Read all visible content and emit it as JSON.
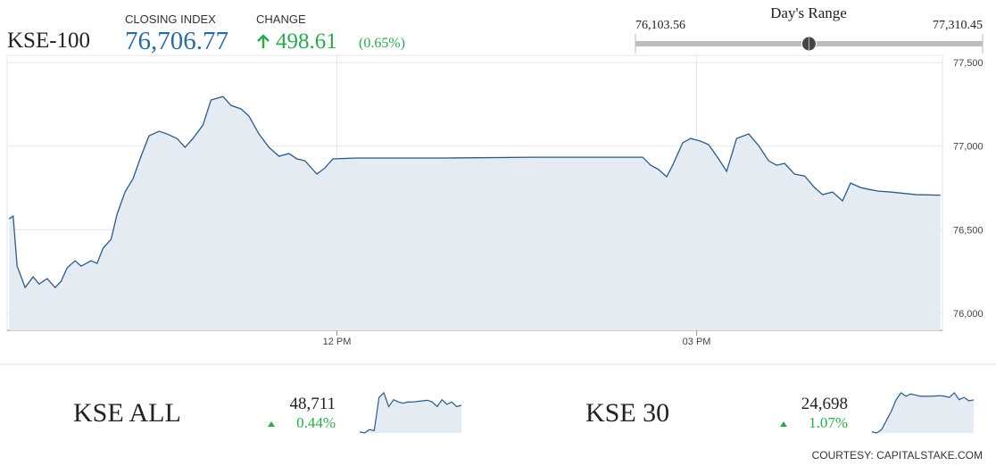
{
  "header": {
    "symbol": "KSE-100",
    "closing_label": "CLOSING INDEX",
    "closing_index": {
      "value": 76706.77,
      "label": "76,706.77"
    },
    "change_label": "CHANGE",
    "change": 498.61,
    "change_pct": {
      "value": 0.65,
      "label": "(0.65%)"
    },
    "range_title": "Day's Range",
    "range_low": {
      "value": 76103.56,
      "label": "76,103.56"
    },
    "range_high": {
      "value": 77310.45,
      "label": "77,310.45"
    }
  },
  "chart_data": [
    {
      "type": "area",
      "color": "#2b5a86",
      "fill": "#e4ebf2",
      "x": [
        556,
        558,
        560,
        564,
        568,
        571,
        575,
        579,
        582,
        585,
        589,
        592,
        597,
        600,
        603,
        607,
        610,
        614,
        618,
        622,
        626,
        631,
        635,
        640,
        644,
        648,
        653,
        657,
        663,
        667,
        672,
        676,
        681,
        686,
        691,
        696,
        700,
        704,
        710,
        714,
        718,
        730,
        775,
        819,
        873,
        877,
        881,
        885,
        888,
        893,
        897,
        902,
        906,
        911,
        915,
        920,
        926,
        931,
        936,
        940,
        944,
        949,
        954,
        959,
        963,
        968,
        973,
        977,
        982,
        986,
        991,
        997,
        1010,
        1022
      ],
      "values": [
        76566,
        76582,
        76283,
        76155,
        76219,
        76176,
        76208,
        76155,
        76192,
        76272,
        76315,
        76283,
        76315,
        76299,
        76390,
        76443,
        76593,
        76726,
        76806,
        76940,
        77062,
        77089,
        77073,
        77046,
        76993,
        77046,
        77127,
        77276,
        77297,
        77244,
        77223,
        77180,
        77073,
        76993,
        76940,
        76956,
        76924,
        76913,
        76833,
        76870,
        76924,
        76929,
        76929,
        76934,
        76934,
        76886,
        76860,
        76817,
        76886,
        77020,
        77046,
        77030,
        77009,
        76924,
        76849,
        77046,
        77073,
        77004,
        76913,
        76886,
        76897,
        76833,
        76822,
        76753,
        76710,
        76726,
        76673,
        76779,
        76753,
        76742,
        76731,
        76726,
        76710,
        76707
      ],
      "xlim": [
        555,
        1023
      ],
      "ylim": [
        75899,
        77543
      ],
      "xticks": [
        {
          "value": 720,
          "label": "12 PM"
        },
        {
          "value": 900,
          "label": "03 PM"
        }
      ],
      "yticks": [
        {
          "value": 76000,
          "label": "76,000"
        },
        {
          "value": 76500,
          "label": "76,500"
        },
        {
          "value": 77000,
          "label": "77,000"
        },
        {
          "value": 77500,
          "label": "77,500"
        }
      ],
      "grid": true
    },
    {
      "type": "sparkline",
      "title": "KSE ALL",
      "color": "#2b5a86",
      "fill": "#e4ebf2",
      "last": {
        "value": 48711,
        "label": "48,711"
      },
      "change_pct": {
        "value": 0.44,
        "label": "0.44%"
      },
      "values": [
        48480,
        48470,
        48500,
        48490,
        48780,
        48820,
        48700,
        48760,
        48740,
        48730,
        48740,
        48740,
        48745,
        48750,
        48755,
        48740,
        48700,
        48760,
        48720,
        48740,
        48700,
        48711
      ]
    },
    {
      "type": "sparkline",
      "title": "KSE 30",
      "color": "#2b5a86",
      "fill": "#e4ebf2",
      "last": {
        "value": 24698,
        "label": "24,698"
      },
      "change_pct": {
        "value": 1.07,
        "label": "1.07%"
      },
      "values": [
        24420,
        24410,
        24440,
        24520,
        24600,
        24700,
        24760,
        24730,
        24750,
        24740,
        24730,
        24730,
        24730,
        24732,
        24735,
        24730,
        24720,
        24760,
        24700,
        24720,
        24690,
        24698
      ]
    }
  ],
  "footer": {
    "credit": "COURTESY: CAPITALSTAKE.COM"
  }
}
